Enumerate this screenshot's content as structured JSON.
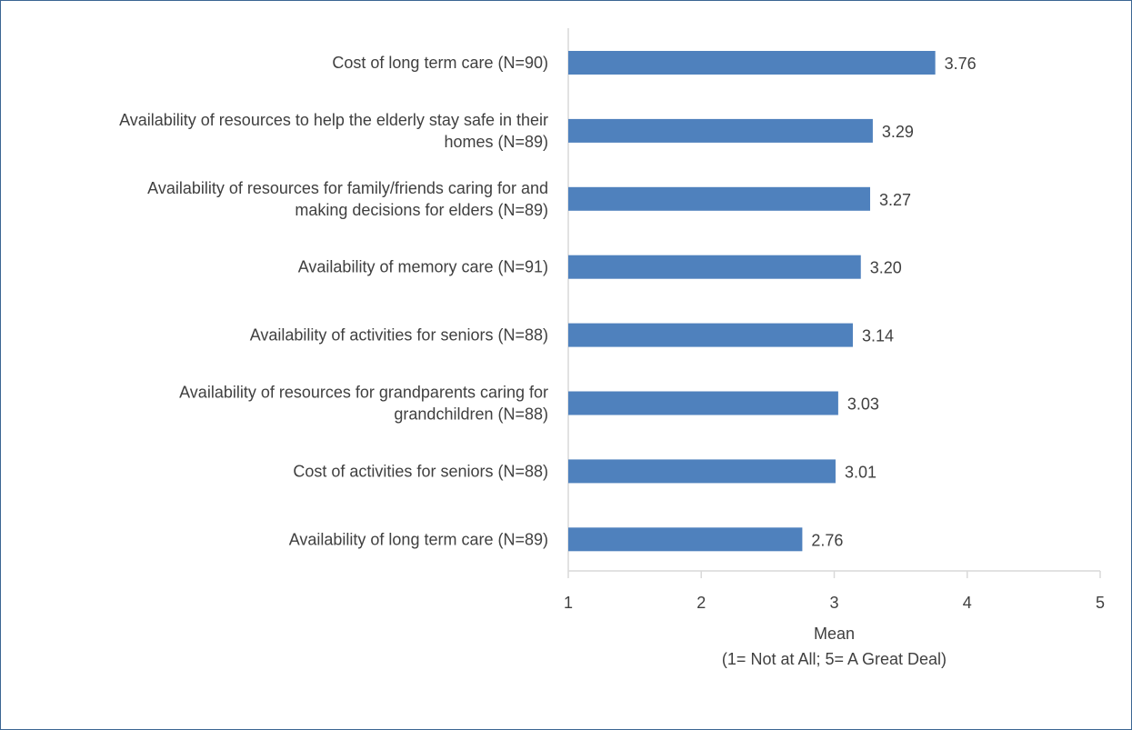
{
  "chart_data": {
    "type": "bar",
    "orientation": "horizontal",
    "categories": [
      [
        "Cost of long term care (N=90)"
      ],
      [
        "Availability of resources to help the elderly stay safe in their",
        "homes (N=89)"
      ],
      [
        "Availability of resources for family/friends caring for and",
        "making decisions for elders (N=89)"
      ],
      [
        "Availability of memory care (N=91)"
      ],
      [
        "Availability of activities for seniors (N=88)"
      ],
      [
        "Availability of resources for grandparents caring for",
        "grandchildren (N=88)"
      ],
      [
        "Cost of activities for seniors (N=88)"
      ],
      [
        "Availability of long term care (N=89)"
      ]
    ],
    "values": [
      3.76,
      3.29,
      3.27,
      3.2,
      3.14,
      3.03,
      3.01,
      2.76
    ],
    "data_labels": [
      "3.76",
      "3.29",
      "3.27",
      "3.20",
      "3.14",
      "3.03",
      "3.01",
      "2.76"
    ],
    "xlim": [
      1,
      5
    ],
    "xticks": [
      1,
      2,
      3,
      4,
      5
    ],
    "xlabel": [
      "Mean",
      "(1= Not at All; 5= A Great Deal)"
    ],
    "ylabel": "",
    "title": "",
    "grid": false,
    "legend": "none",
    "colors": {
      "bar": "#4f81bd",
      "axis": "#d9d9d9",
      "text": "#404040",
      "border": "#3b6593"
    }
  }
}
